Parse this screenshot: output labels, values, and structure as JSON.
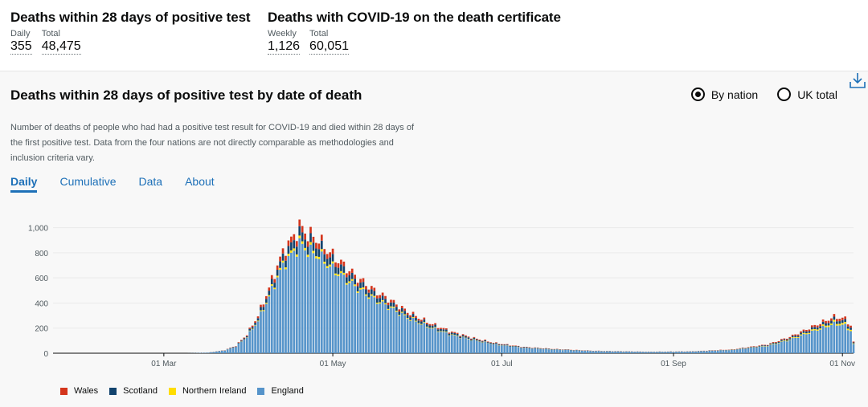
{
  "headlines": [
    {
      "title": "Deaths within 28 days of positive test",
      "stats": [
        {
          "label": "Daily",
          "value": "355"
        },
        {
          "label": "Total",
          "value": "48,475"
        }
      ]
    },
    {
      "title": "Deaths with COVID-19 on the death certificate",
      "stats": [
        {
          "label": "Weekly",
          "value": "1,126"
        },
        {
          "label": "Total",
          "value": "60,051"
        }
      ]
    }
  ],
  "card": {
    "title": "Deaths within 28 days of positive test by date of death",
    "radios": [
      {
        "label": "By nation",
        "selected": true
      },
      {
        "label": "UK total",
        "selected": false
      }
    ],
    "download_icon": "download-icon",
    "description": "Number of deaths of people who had had a positive test result for COVID-19 and died within 28 days of the first positive test. Data from the four nations are not directly comparable as methodologies and inclusion criteria vary.",
    "tabs": [
      "Daily",
      "Cumulative",
      "Data",
      "About"
    ],
    "active_tab": "Daily"
  },
  "colors": {
    "wales": "#d4351c",
    "scotland": "#12436d",
    "northern_ireland": "#ffdd00",
    "england": "#5694ca"
  },
  "chart_data": {
    "type": "bar",
    "stacked": true,
    "title": "Deaths within 28 days of positive test by date of death",
    "xlabel": "",
    "ylabel": "",
    "ylim": [
      0,
      1100
    ],
    "yticks": [
      0,
      200,
      400,
      600,
      800,
      1000
    ],
    "ytick_labels": [
      "0",
      "200",
      "400",
      "600",
      "800",
      "1,000"
    ],
    "xticks": [
      {
        "day": 40,
        "label": "01 Mar"
      },
      {
        "day": 101,
        "label": "01 May"
      },
      {
        "day": 162,
        "label": "01 Jul"
      },
      {
        "day": 224,
        "label": "01 Sep"
      },
      {
        "day": 285,
        "label": "01 Nov"
      }
    ],
    "x_range_days": [
      0,
      289
    ],
    "series_names": [
      "England",
      "Northern Ireland",
      "Scotland",
      "Wales"
    ],
    "curve_keypoints_total": [
      [
        0,
        0
      ],
      [
        48,
        0
      ],
      [
        56,
        5
      ],
      [
        62,
        25
      ],
      [
        66,
        60
      ],
      [
        70,
        150
      ],
      [
        74,
        300
      ],
      [
        78,
        520
      ],
      [
        81,
        700
      ],
      [
        84,
        850
      ],
      [
        86,
        900
      ],
      [
        89,
        1010
      ],
      [
        92,
        950
      ],
      [
        96,
        900
      ],
      [
        100,
        800
      ],
      [
        104,
        720
      ],
      [
        110,
        600
      ],
      [
        116,
        500
      ],
      [
        122,
        420
      ],
      [
        128,
        330
      ],
      [
        136,
        240
      ],
      [
        144,
        170
      ],
      [
        152,
        120
      ],
      [
        160,
        80
      ],
      [
        170,
        50
      ],
      [
        180,
        35
      ],
      [
        195,
        20
      ],
      [
        215,
        12
      ],
      [
        230,
        15
      ],
      [
        245,
        30
      ],
      [
        258,
        70
      ],
      [
        266,
        130
      ],
      [
        272,
        190
      ],
      [
        278,
        250
      ],
      [
        282,
        290
      ],
      [
        286,
        275
      ],
      [
        288,
        220
      ],
      [
        289,
        90
      ]
    ],
    "share_keypoints": {
      "wales": [
        [
          0,
          0.04
        ],
        [
          90,
          0.05
        ],
        [
          150,
          0.05
        ],
        [
          240,
          0.06
        ],
        [
          289,
          0.07
        ]
      ],
      "scotland": [
        [
          0,
          0.05
        ],
        [
          90,
          0.07
        ],
        [
          150,
          0.08
        ],
        [
          240,
          0.07
        ],
        [
          289,
          0.08
        ]
      ],
      "northern_ireland": [
        [
          0,
          0.01
        ],
        [
          90,
          0.02
        ],
        [
          150,
          0.02
        ],
        [
          240,
          0.03
        ],
        [
          289,
          0.05
        ]
      ]
    },
    "legend": [
      {
        "label": "Wales",
        "color": "#d4351c"
      },
      {
        "label": "Scotland",
        "color": "#12436d"
      },
      {
        "label": "Northern Ireland",
        "color": "#ffdd00"
      },
      {
        "label": "England",
        "color": "#5694ca"
      }
    ]
  }
}
